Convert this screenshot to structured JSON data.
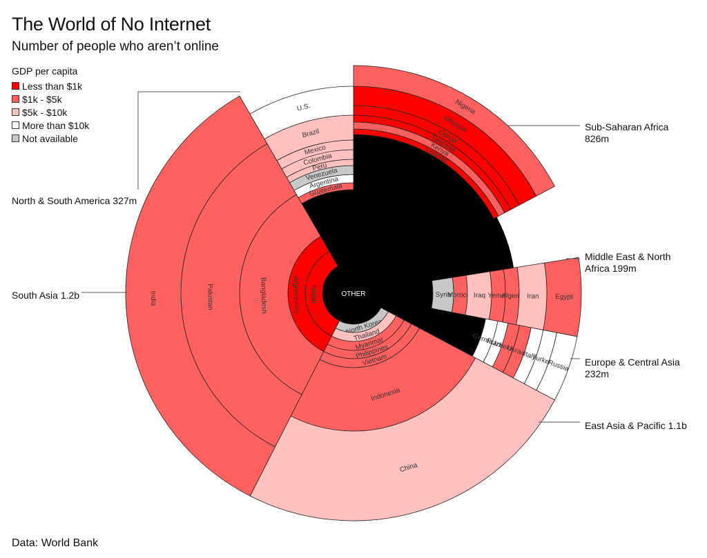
{
  "header": {
    "title": "The World of No Internet",
    "subtitle": "Number of people who aren’t online"
  },
  "legend": {
    "title": "GDP per capita",
    "items": [
      {
        "label": "Less than $1k",
        "color": "#ff0000"
      },
      {
        "label": "$1k - $5k",
        "color": "#ff6060"
      },
      {
        "label": "$5k - $10k",
        "color": "#ffc0c0"
      },
      {
        "label": "More than $10k",
        "color": "#ffffff"
      },
      {
        "label": "Not available",
        "color": "#c8c8c8"
      }
    ]
  },
  "source": "Data: World Bank",
  "center_label": "OTHER",
  "region_labels": {
    "ssa": {
      "line1": "Sub-Saharan Africa",
      "line2": "826m"
    },
    "mena": {
      "line1": "Middle East & North",
      "line2": "Africa 199m"
    },
    "eca": {
      "line1": "Europe & Central Asia",
      "line2": "232m"
    },
    "eap": {
      "line1": "East Asia & Pacific 1.1b"
    },
    "sa": {
      "line1": "South Asia 1.2b"
    },
    "nsa": {
      "line1": "North & South America 327m"
    }
  },
  "chart_data": {
    "type": "pie",
    "subtype": "stacked-radial-sunburst",
    "title": "The World of No Internet",
    "subtitle": "Number of people who aren't online",
    "center": "OTHER",
    "color_key": {
      "lt1k": "Less than $1k",
      "1k5k": "$1k - $5k",
      "5k10k": "$5k - $10k",
      "gt10k": "More than $10k",
      "na": "Not available"
    },
    "regions": [
      {
        "name": "Sub-Saharan Africa",
        "total": "826m",
        "countries_inner_to_outer": [
          {
            "name": "Uganda",
            "gdp": "lt1k"
          },
          {
            "name": "Kenya",
            "gdp": "1k5k"
          },
          {
            "name": "Tanzania",
            "gdp": "lt1k"
          },
          {
            "name": "Congo",
            "gdp": "lt1k"
          },
          {
            "name": "Ethiopia",
            "gdp": "lt1k"
          },
          {
            "name": "Nigeria",
            "gdp": "1k5k"
          }
        ]
      },
      {
        "name": "Middle East & North Africa",
        "total": "199m",
        "countries_inner_to_outer": [
          {
            "name": "Syria",
            "gdp": "na"
          },
          {
            "name": "Morocco",
            "gdp": "1k5k"
          },
          {
            "name": "Iraq",
            "gdp": "5k10k"
          },
          {
            "name": "Yemen",
            "gdp": "1k5k"
          },
          {
            "name": "Algeria",
            "gdp": "1k5k"
          },
          {
            "name": "Iran",
            "gdp": "5k10k"
          },
          {
            "name": "Egypt",
            "gdp": "1k5k"
          }
        ]
      },
      {
        "name": "Europe & Central Asia",
        "total": "232m",
        "countries_inner_to_outer": [
          {
            "name": "Germany",
            "gdp": "gt10k"
          },
          {
            "name": "France",
            "gdp": "gt10k"
          },
          {
            "name": "Uzbekistan",
            "gdp": "1k5k"
          },
          {
            "name": "Ukraine",
            "gdp": "1k5k"
          },
          {
            "name": "Italy",
            "gdp": "gt10k"
          },
          {
            "name": "Turkey",
            "gdp": "gt10k"
          },
          {
            "name": "Russia",
            "gdp": "gt10k"
          }
        ]
      },
      {
        "name": "East Asia & Pacific",
        "total": "1.1b",
        "countries_inner_to_outer": [
          {
            "name": "North Korea",
            "gdp": "na"
          },
          {
            "name": "Thailand",
            "gdp": "5k10k"
          },
          {
            "name": "Myanmar",
            "gdp": "1k5k"
          },
          {
            "name": "Philippines",
            "gdp": "1k5k"
          },
          {
            "name": "Vietnam",
            "gdp": "1k5k"
          },
          {
            "name": "Indonesia",
            "gdp": "1k5k"
          },
          {
            "name": "China",
            "gdp": "5k10k"
          }
        ]
      },
      {
        "name": "South Asia",
        "total": "1.2b",
        "countries_inner_to_outer": [
          {
            "name": "Nepal",
            "gdp": "lt1k"
          },
          {
            "name": "Afghanistan",
            "gdp": "lt1k"
          },
          {
            "name": "Bangladesh",
            "gdp": "1k5k"
          },
          {
            "name": "Pakistan",
            "gdp": "1k5k"
          },
          {
            "name": "India",
            "gdp": "1k5k"
          }
        ]
      },
      {
        "name": "North & South America",
        "total": "327m",
        "countries_inner_to_outer": [
          {
            "name": "Guatemala",
            "gdp": "1k5k"
          },
          {
            "name": "Argentina",
            "gdp": "gt10k"
          },
          {
            "name": "Venezuela",
            "gdp": "na"
          },
          {
            "name": "Peru",
            "gdp": "5k10k"
          },
          {
            "name": "Colombia",
            "gdp": "5k10k"
          },
          {
            "name": "Mexico",
            "gdp": "5k10k"
          },
          {
            "name": "Brazil",
            "gdp": "5k10k"
          },
          {
            "name": "U.S.",
            "gdp": "gt10k"
          }
        ]
      }
    ]
  }
}
